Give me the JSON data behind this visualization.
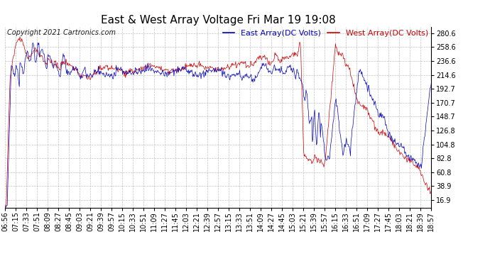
{
  "title": "East & West Array Voltage Fri Mar 19 19:08",
  "copyright": "Copyright 2021 Cartronics.com",
  "legend_east": "East Array(DC Volts)",
  "legend_west": "West Array(DC Volts)",
  "east_color": "#0000bb",
  "west_color": "#cc0000",
  "background_color": "#ffffff",
  "plot_bg_color": "#ffffff",
  "grid_color": "#aaaaaa",
  "yticks": [
    16.9,
    38.9,
    60.8,
    82.8,
    104.8,
    126.8,
    148.7,
    170.7,
    192.7,
    214.6,
    236.6,
    258.6,
    280.6
  ],
  "ymin": 5,
  "ymax": 291,
  "time_labels": [
    "06:56",
    "07:15",
    "07:33",
    "07:51",
    "08:09",
    "08:27",
    "08:45",
    "09:03",
    "09:21",
    "09:39",
    "09:57",
    "10:15",
    "10:33",
    "10:51",
    "11:09",
    "11:27",
    "11:45",
    "12:03",
    "12:21",
    "12:39",
    "12:57",
    "13:15",
    "13:33",
    "13:51",
    "14:09",
    "14:27",
    "14:45",
    "15:03",
    "15:21",
    "15:39",
    "15:57",
    "16:15",
    "16:33",
    "16:51",
    "17:09",
    "17:27",
    "17:45",
    "18:03",
    "18:21",
    "18:39",
    "18:57"
  ],
  "title_fontsize": 11,
  "label_fontsize": 7,
  "legend_fontsize": 8,
  "copyright_fontsize": 7
}
